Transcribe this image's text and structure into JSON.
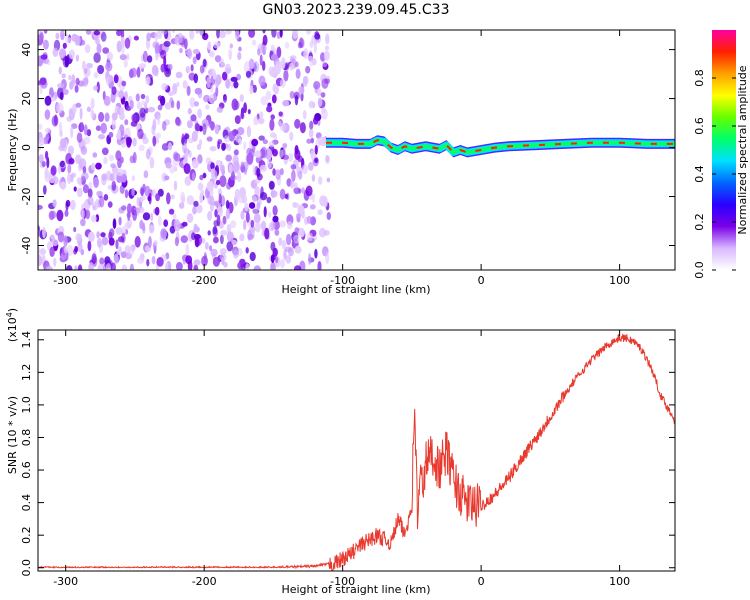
{
  "figure": {
    "title": "GN03.2023.239.09.45.C33"
  },
  "chart_data": [
    {
      "type": "heatmap",
      "xlabel": "Height of straight line (km)",
      "ylabel": "Frequency (Hz)",
      "xlim": [
        -320,
        140
      ],
      "ylim": [
        -50,
        48
      ],
      "xticks": [
        -300,
        -200,
        -100,
        0,
        100
      ],
      "yticks": [
        -40,
        -20,
        0,
        20,
        40
      ],
      "noise_region_x": [
        -320,
        -110
      ],
      "signal_trace": {
        "x": [
          -112,
          -100,
          -90,
          -80,
          -75,
          -70,
          -65,
          -60,
          -55,
          -50,
          -40,
          -30,
          -25,
          -20,
          -15,
          -10,
          0,
          10,
          20,
          40,
          60,
          80,
          100,
          120,
          140
        ],
        "freq": [
          2,
          2,
          1.5,
          1.5,
          3,
          2.5,
          0,
          -1,
          0.5,
          -0.5,
          0.5,
          -0.5,
          1,
          -2,
          -1,
          -2,
          -1,
          0,
          0.5,
          1,
          1.5,
          2,
          2,
          1.5,
          1.5
        ]
      },
      "colorbar": {
        "label": "Normalized spectral amplitude",
        "range": [
          0,
          1
        ],
        "ticks": [
          0.0,
          0.2,
          0.4,
          0.6,
          0.8
        ],
        "tick_labels": [
          "0.0",
          "0.2",
          "0.4",
          "0.6",
          "0.8"
        ],
        "colors": [
          "#ffffff",
          "#d9b8ff",
          "#7a00e8",
          "#2a00ff",
          "#0066ff",
          "#00e0ff",
          "#00ff6a",
          "#66ff00",
          "#ffff00",
          "#ffa000",
          "#ff2000",
          "#ff00a0"
        ]
      },
      "grid": false
    },
    {
      "type": "line",
      "xlabel": "Height of straight line (km)",
      "ylabel": "SNR (10 * v/v)",
      "y_multiplier_label": "(x10",
      "y_multiplier_exp": "4",
      "y_multiplier_close": ")",
      "xlim": [
        -320,
        140
      ],
      "ylim": [
        -0.02,
        1.46
      ],
      "xticks": [
        -300,
        -200,
        -100,
        0,
        100
      ],
      "yticks": [
        0.0,
        0.2,
        0.4,
        0.6,
        0.8,
        1.0,
        1.2,
        1.4
      ],
      "ytick_labels": [
        "0.0",
        "0.2",
        "0.4",
        "0.6",
        "0.8",
        "1.0",
        "1.2",
        "1.4"
      ],
      "line_color": "#e8392e",
      "series": [
        {
          "x": [
            -320,
            -250,
            -200,
            -150,
            -120,
            -105,
            -95,
            -85,
            -75,
            -65,
            -60,
            -55,
            -50,
            -48,
            -46,
            -44,
            -42,
            -40,
            -35,
            -30,
            -25,
            -20,
            -15,
            -10,
            -5,
            0,
            10,
            20,
            30,
            40,
            50,
            60,
            70,
            80,
            90,
            95,
            100,
            105,
            110,
            115,
            120,
            125,
            130,
            135,
            140
          ],
          "y": [
            0.0,
            0.0,
            0.0,
            0.0,
            0.01,
            0.03,
            0.08,
            0.15,
            0.2,
            0.15,
            0.3,
            0.2,
            0.4,
            1.05,
            0.3,
            0.55,
            0.5,
            0.65,
            0.7,
            0.6,
            0.72,
            0.55,
            0.45,
            0.4,
            0.38,
            0.38,
            0.45,
            0.55,
            0.68,
            0.8,
            0.93,
            1.06,
            1.18,
            1.28,
            1.36,
            1.39,
            1.41,
            1.41,
            1.39,
            1.35,
            1.28,
            1.18,
            1.05,
            0.98,
            0.9
          ]
        }
      ],
      "grid": false
    }
  ]
}
